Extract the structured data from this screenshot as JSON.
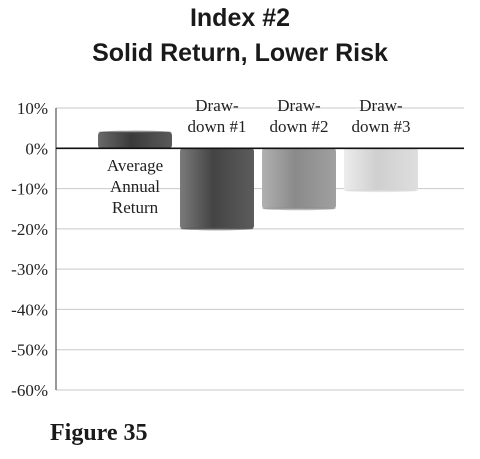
{
  "chart_data": {
    "type": "bar",
    "title": "Index #2",
    "subtitle": "Solid Return, Lower Risk",
    "categories": [
      "Average Annual Return",
      "Draw-down #1",
      "Draw-down #2",
      "Draw-down #3"
    ],
    "category_label_lines": [
      [
        "Average",
        "Annual",
        "Return"
      ],
      [
        "Draw-",
        "down #1"
      ],
      [
        "Draw-",
        "down #2"
      ],
      [
        "Draw-",
        "down #3"
      ]
    ],
    "values": [
      4,
      -20,
      -15,
      -10.5
    ],
    "bar_colors": [
      "#4a4a4a",
      "#555555",
      "#8c8c8c",
      "#d4d4d4"
    ],
    "yticks": [
      "10%",
      "0%",
      "-10%",
      "-20%",
      "-30%",
      "-40%",
      "-50%",
      "-60%"
    ],
    "ylim": [
      -60,
      10
    ],
    "grid": true,
    "xlabel": "",
    "ylabel": ""
  },
  "figure_label": "Figure 35"
}
